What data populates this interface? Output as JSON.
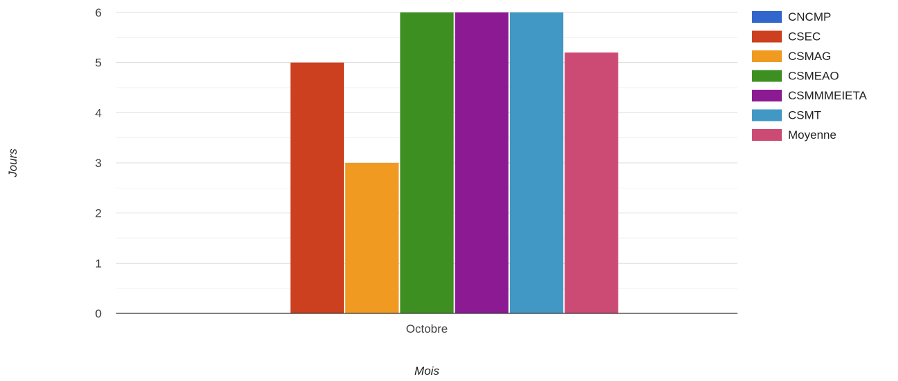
{
  "chart_data": {
    "type": "bar",
    "categories": [
      "Octobre"
    ],
    "xlabel": "Mois",
    "ylabel": "Jours",
    "ylim": [
      0,
      6
    ],
    "y_ticks": [
      0,
      1,
      2,
      3,
      4,
      5,
      6
    ],
    "grid": true,
    "legend_position": "right",
    "series": [
      {
        "name": "CNCMP",
        "color": "#3366cc",
        "values": [
          0
        ]
      },
      {
        "name": "CSEC",
        "color": "#cc3f1f",
        "values": [
          5
        ]
      },
      {
        "name": "CSMAG",
        "color": "#f09a22",
        "values": [
          3
        ]
      },
      {
        "name": "CSMEAO",
        "color": "#3d8f22",
        "values": [
          6
        ]
      },
      {
        "name": "CSMMMEIETA",
        "color": "#8b1a93",
        "values": [
          6
        ]
      },
      {
        "name": "CSMT",
        "color": "#4298c4",
        "values": [
          6
        ]
      },
      {
        "name": "Moyenne",
        "color": "#cc4b74",
        "values": [
          5.2
        ]
      }
    ]
  }
}
